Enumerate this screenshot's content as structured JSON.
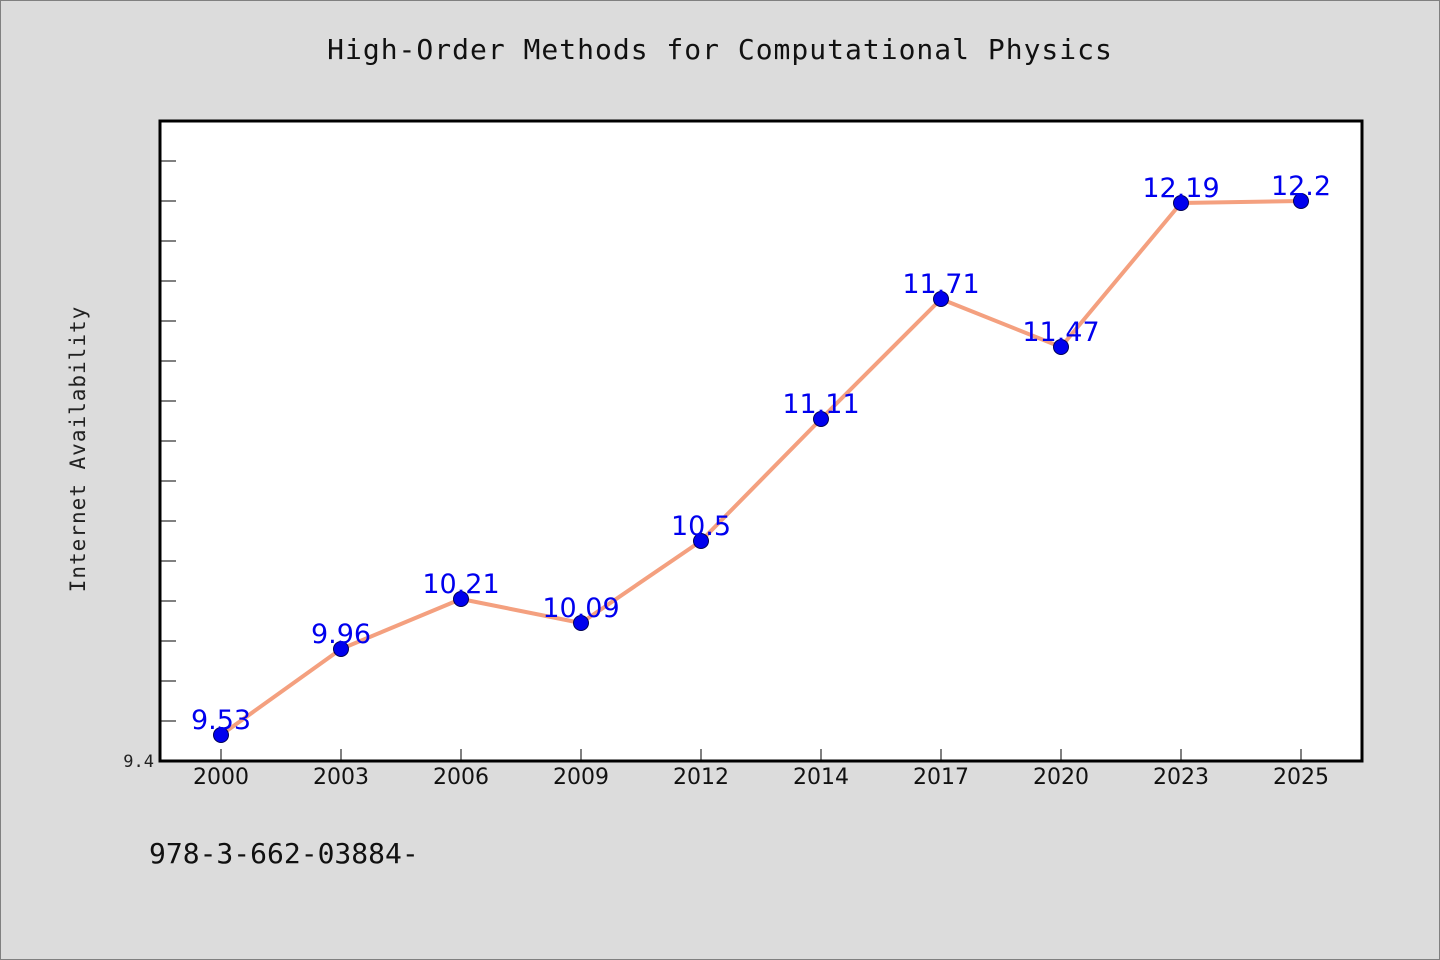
{
  "chart_data": {
    "type": "line",
    "title": "High-Order Methods for Computational Physics",
    "ylabel": "Internet Availability",
    "xlabel": "",
    "categories": [
      "2000",
      "2003",
      "2006",
      "2009",
      "2012",
      "2014",
      "2017",
      "2020",
      "2023",
      "2025"
    ],
    "series": [
      {
        "values": [
          9.53,
          9.96,
          10.21,
          10.09,
          10.5,
          11.11,
          11.71,
          11.47,
          12.19,
          12.2
        ]
      }
    ],
    "data_labels": [
      "9.53",
      "9.96",
      "10.21",
      "10.09",
      "10.5",
      "11.11",
      "11.71",
      "11.47",
      "12.19",
      "12.2"
    ],
    "y_tick_label": "9.4",
    "ylim": [
      9.4,
      12.6
    ],
    "grid": false,
    "legend": "none",
    "colors": {
      "line": "#f4a07f",
      "marker": "#0000ee",
      "data_label": "#0000ee",
      "plot_background": "#ffffff",
      "page_background": "#dcdcdc"
    }
  },
  "footer": {
    "code": "978-3-662-03884-"
  }
}
